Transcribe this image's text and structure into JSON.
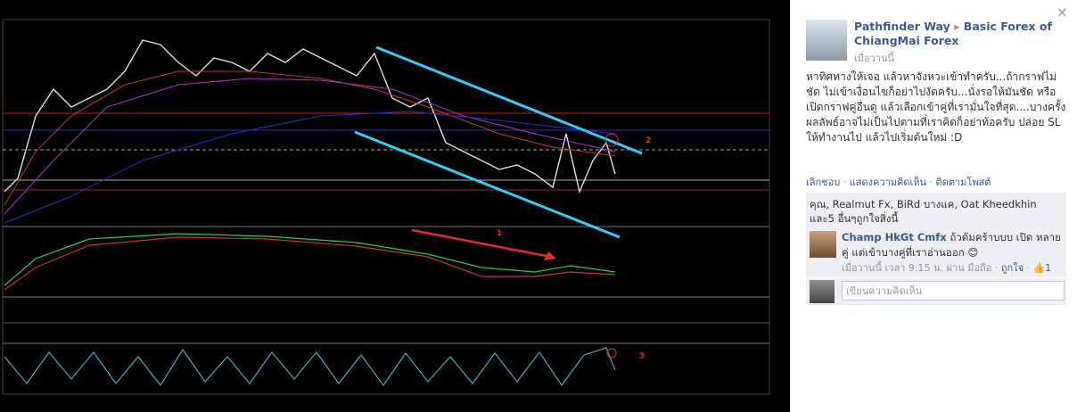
{
  "chart_image": {
    "labels": [
      "1",
      "2",
      "3"
    ]
  },
  "post": {
    "author": "Pathfinder Way",
    "arrow": "▸",
    "group": "Basic Forex of ChiangMai Forex",
    "time": "เมื่อวานนี้",
    "text": "หาทิศทางให้เจอ แล้วหาจังหวะเข้าทำครับ...ถ้ากราฟไม่ชัด ไม่เข้าเงื่อนไขก็อย่าไปงัดครับ...นั่งรอให้มันชัด หรือเปิดกราฟคู่อื่นดู แล้วเลือกเข้าคู่ที่เรามั่นใจที่สุด....บางครั้งผลลัพธ์อาจไม่เป็นไปตามที่เราคิดก็อย่าท้อครับ ปล่อย SL ให้ทำงานไป แล้วไปเริ่มต้นใหม่ :D",
    "actions": [
      "เลิกชอบ",
      "แสดงความคิดเห็น",
      "ติดตามโพสต์"
    ],
    "likes": "คุณ, Realmut Fx, BiRd บางแค, Oat Kheedkhin และ5 อื่นๆถูกใจสิ่งนี้"
  },
  "comment": {
    "author": "Champ HkGt Cmfx",
    "text": "ถ้วต้มคร้าบบบ เปิด หลายคู่ แต่เข้าบางคู่ที่เราอ่านออก 😊",
    "meta": "เมื่อวานนี้ เวลา 9:15 น. ผ่าน มือถือ",
    "like": "ถูกใจ",
    "count": "1"
  },
  "input_placeholder": "เขียนความคิดเห็น",
  "close": "×"
}
